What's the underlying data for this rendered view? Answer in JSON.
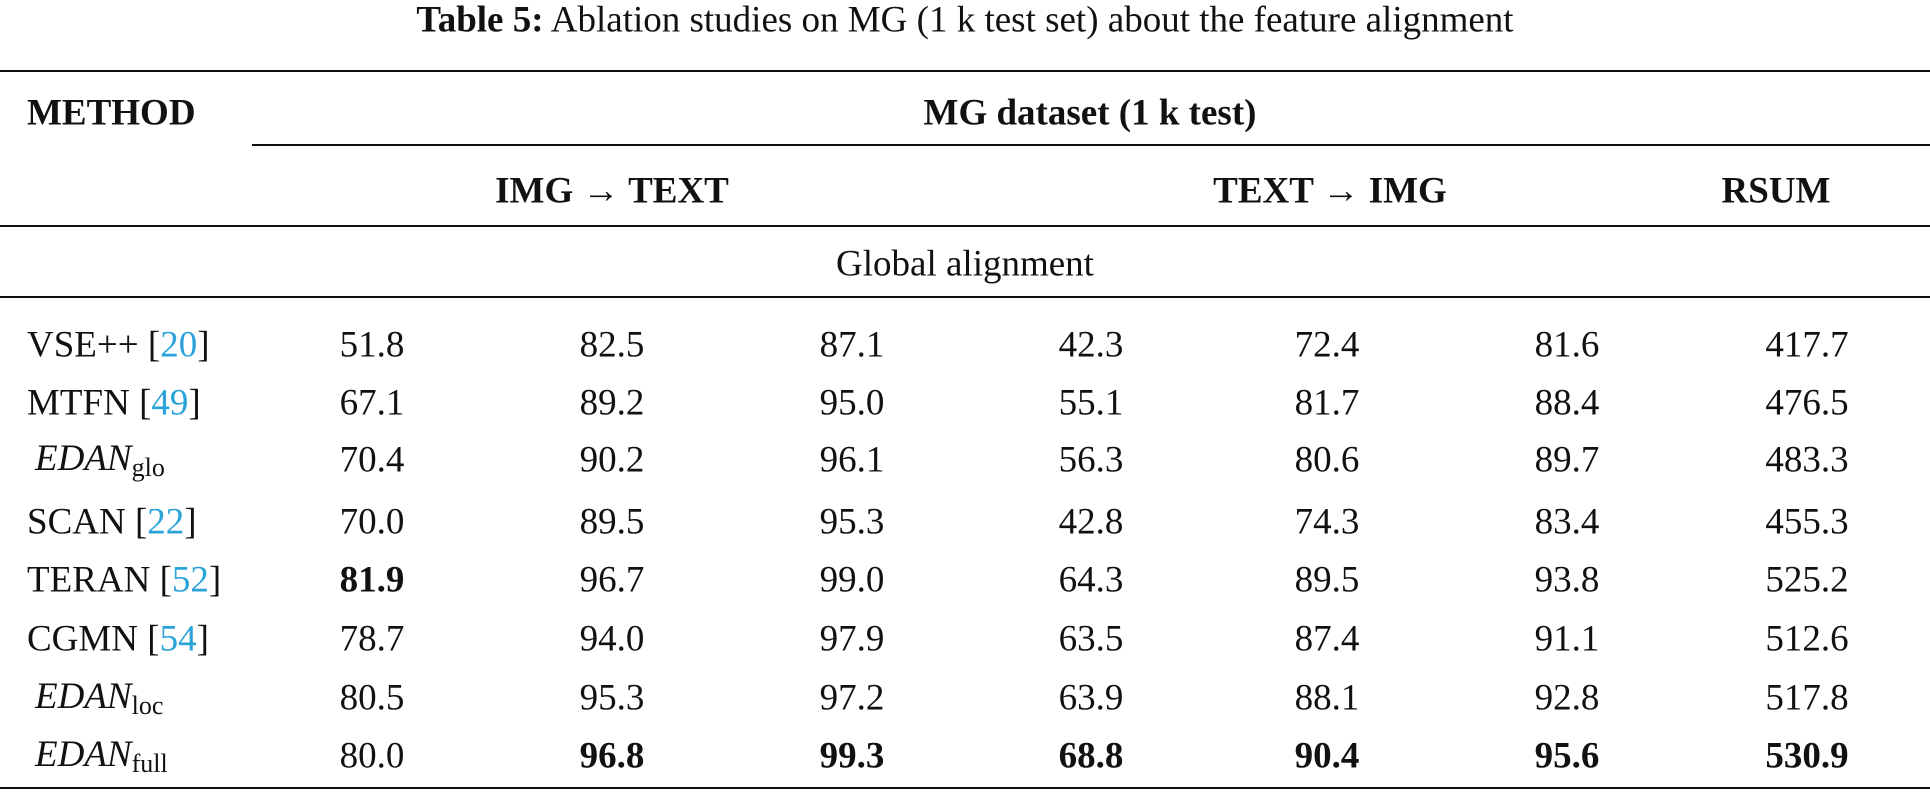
{
  "table": {
    "caption": {
      "label": "Table 5:",
      "text": "Ablation studies on MG (1 k test set) about the feature alignment"
    },
    "header": {
      "method": "METHOD",
      "dataset": "MG dataset (1 k test)",
      "groups": [
        "IMG → TEXT",
        "TEXT → IMG",
        "RSUM"
      ]
    },
    "section": "Global alignment",
    "rows": [
      {
        "name": "VSE++",
        "ref": {
          "open": "[",
          "number": "20",
          "close": "]"
        },
        "values": [
          "51.8",
          "82.5",
          "87.1",
          "42.3",
          "72.4",
          "81.6",
          "417.7"
        ],
        "bold": []
      },
      {
        "name": "MTFN",
        "ref": {
          "open": "[",
          "number": "49",
          "close": "]"
        },
        "values": [
          "67.1",
          "89.2",
          "95.0",
          "55.1",
          "81.7",
          "88.4",
          "476.5"
        ],
        "bold": []
      },
      {
        "name": "EDAN",
        "sub": "glo",
        "values": [
          "70.4",
          "90.2",
          "96.1",
          "56.3",
          "80.6",
          "89.7",
          "483.3"
        ],
        "bold": []
      },
      {
        "name": "SCAN",
        "ref": {
          "open": "[",
          "number": "22",
          "close": "]"
        },
        "values": [
          "70.0",
          "89.5",
          "95.3",
          "42.8",
          "74.3",
          "83.4",
          "455.3"
        ],
        "bold": []
      },
      {
        "name": "TERAN",
        "ref": {
          "open": "[",
          "number": "52",
          "close": "]"
        },
        "values": [
          "81.9",
          "96.7",
          "99.0",
          "64.3",
          "89.5",
          "93.8",
          "525.2"
        ],
        "bold": [
          0
        ]
      },
      {
        "name": "CGMN",
        "ref": {
          "open": "[",
          "number": "54",
          "close": "]"
        },
        "values": [
          "78.7",
          "94.0",
          "97.9",
          "63.5",
          "87.4",
          "91.1",
          "512.6"
        ],
        "bold": []
      },
      {
        "name": "EDAN",
        "sub": "loc",
        "values": [
          "80.5",
          "95.3",
          "97.2",
          "63.9",
          "88.1",
          "92.8",
          "517.8"
        ],
        "bold": []
      },
      {
        "name": "EDAN",
        "sub": "full",
        "values": [
          "80.0",
          "96.8",
          "99.3",
          "68.8",
          "90.4",
          "95.6",
          "530.9"
        ],
        "bold": [
          1,
          2,
          3,
          4,
          5,
          6
        ]
      }
    ]
  }
}
